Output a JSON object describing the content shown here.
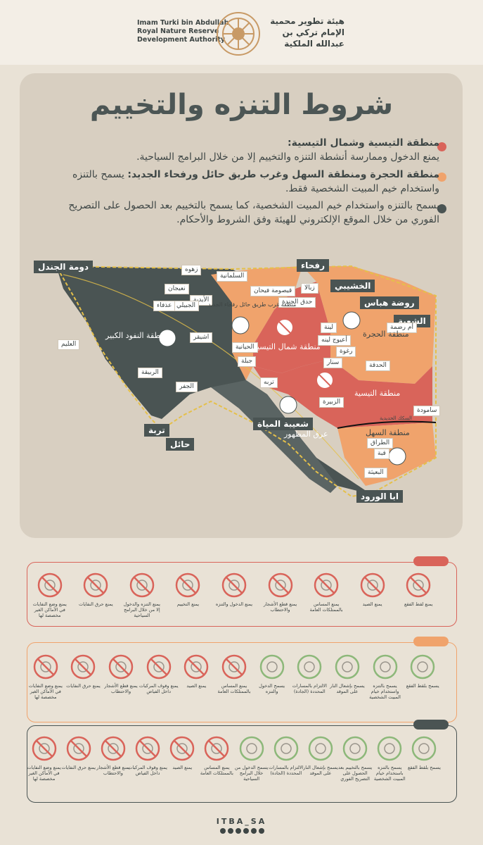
{
  "org": {
    "en": [
      "Imam Turki bin Abdullah",
      "Royal Nature Reserve",
      "Development Authority"
    ],
    "ar": [
      "هيئة تطوير محمية",
      "الإمام تركي بن",
      "عبدالله الملكية"
    ]
  },
  "title": "شروط التنزه والتخييم",
  "rules": [
    {
      "color": "#d9645a",
      "heading": "منطقة التيسية وشمال التيسية:",
      "text": "يمنع الدخول وممارسة أنشطة التنزه والتخييم إلا من خلال البرامج السياحية."
    },
    {
      "color": "#f0a36c",
      "heading": "منطقة الحجرة ومنطقة السهل وغرب طريق حائل ورفحاء الجديد:",
      "text": "يسمح بالتنزه واستخدام خيم المبيت الشخصية فقط."
    },
    {
      "color": "#4a5453",
      "heading": "",
      "text": "يسمح بالتنزه واستخدام خيم المبيت الشخصية، كما يسمح بالتخييم بعد الحصول على التصريح الفوري من خلال الموقع الإلكتروني للهيئة وفق الشروط والأحكام."
    }
  ],
  "map": {
    "big_labels": [
      "دومة الجندل",
      "رفحاء",
      "الخشيبي",
      "روضة هباس",
      "الشعبة",
      "شعيبة المياة",
      "تربة",
      "حائل",
      "ابا الورود"
    ],
    "small_labels": [
      "زهوه",
      "السلمانية",
      "نعيجان",
      "الأيدية",
      "الجبيلي",
      "عذفاء",
      "قيصومة فيحان",
      "زبالا",
      "حدق الجندة",
      "لينة",
      "أم رضمة",
      "أعيوج لينه",
      "رغوة",
      "الحدقة",
      "سنار",
      "اشيقر",
      "الحيانية",
      "جبلة",
      "العليم",
      "الربيقة",
      "الجفر",
      "تربه",
      "الزبيرة",
      "سامودة",
      "الطراق",
      "قبة",
      "البعيثة"
    ],
    "zones": [
      "منطقة النفود الكبير",
      "منطقة غرب طريق حائل رفحاء الجديد",
      "منطقة شمال التيسية",
      "منطقة الحجرة",
      "منطقة التيسية",
      "عرق المظهور",
      "منطقة السهل"
    ],
    "rail": "السكك الحديدية"
  },
  "bands": [
    {
      "color": "#d9645a",
      "items": [
        {
          "icon": "truffle-icon",
          "allowed": false,
          "label": "يمنع لقط الفقع"
        },
        {
          "icon": "no-hunting-icon",
          "allowed": false,
          "label": "يمنع الصيد"
        },
        {
          "icon": "no-touch-icon",
          "allowed": false,
          "label": "يمنع المساس بالممتلكات العامة"
        },
        {
          "icon": "no-tree-cutting-icon",
          "allowed": false,
          "label": "يمنع قطع الأشجار والاحتطاب"
        },
        {
          "icon": "no-walking-icon",
          "allowed": false,
          "label": "يمنع الدخول والتنزه"
        },
        {
          "icon": "no-camping-icon",
          "allowed": false,
          "label": "يمنع التخييم"
        },
        {
          "icon": "no-entry-icon",
          "allowed": false,
          "label": "يمنع التنزه والدخول إلا من خلال البرامج السياحية"
        },
        {
          "icon": "no-fire-icon",
          "allowed": false,
          "label": "يمنع حرق النفايات"
        },
        {
          "icon": "no-littering-icon",
          "allowed": false,
          "label": "يمنع وضع النفايات في الأماكن الغير مخصصة لها"
        }
      ]
    },
    {
      "color": "#f0a36c",
      "items": [
        {
          "icon": "truffle-icon",
          "allowed": true,
          "label": "يسمح بلقط الفقع"
        },
        {
          "icon": "tent-icon",
          "allowed": true,
          "label": "يسمح بالتنزه واستخدام خيام المبيت الشخصية"
        },
        {
          "icon": "campfire-icon",
          "allowed": true,
          "label": "يسمح بإشعال النار على الموقد"
        },
        {
          "icon": "path-icon",
          "allowed": true,
          "label": "الالتزام بالمسارات المحددة (الجادة)"
        },
        {
          "icon": "walking-icon",
          "allowed": true,
          "label": "يسمح الدخول والتنزه"
        },
        {
          "icon": "no-touch-icon",
          "allowed": false,
          "label": "يمنع المساس بالممتلكات العامة"
        },
        {
          "icon": "no-hunting-icon",
          "allowed": false,
          "label": "يمنع الصيد"
        },
        {
          "icon": "no-vehicle-icon",
          "allowed": false,
          "label": "يمنع وقوف المركبات داخل الفياض"
        },
        {
          "icon": "no-tree-cutting-icon",
          "allowed": false,
          "label": "يمنع قطع الأشجار والاحتطاب"
        },
        {
          "icon": "no-fire-icon",
          "allowed": false,
          "label": "يمنع حرق النفايات"
        },
        {
          "icon": "no-littering-icon",
          "allowed": false,
          "label": "يمنع وضع النفايات في الأماكن الغير مخصصة لها"
        }
      ]
    },
    {
      "color": "#4a5453",
      "items": [
        {
          "icon": "truffle-icon",
          "allowed": true,
          "label": "يسمح بلقط الفقع"
        },
        {
          "icon": "tent-icon",
          "allowed": true,
          "label": "يسمح بالتنزه باستخدام خيام المبيت الشخصية"
        },
        {
          "icon": "permit-camp-icon",
          "allowed": true,
          "label": "يسمح بالتخييم بعد الحصول على التصريح الفوري"
        },
        {
          "icon": "campfire-icon",
          "allowed": true,
          "label": "يسمح بإشعال النار على الموقد"
        },
        {
          "icon": "path-icon",
          "allowed": true,
          "label": "الالتزام بالمسارات المحددة (الجادة)"
        },
        {
          "icon": "walking-icon",
          "allowed": true,
          "label": "يسمح الدخول من خلال البرامج السياحية"
        },
        {
          "icon": "no-touch-icon",
          "allowed": false,
          "label": "يمنع المساس بالممتلكات العامة"
        },
        {
          "icon": "no-hunting-icon",
          "allowed": false,
          "label": "يمنع الصيد"
        },
        {
          "icon": "no-vehicle-icon",
          "allowed": false,
          "label": "يمنع وقوف المركبات داخل الفياض"
        },
        {
          "icon": "no-tree-cutting-icon",
          "allowed": false,
          "label": "يمنع قطع الأشجار والاحتطاب"
        },
        {
          "icon": "no-fire-icon",
          "allowed": false,
          "label": "يمنع حرق النفايات"
        },
        {
          "icon": "no-littering-icon",
          "allowed": false,
          "label": "يمنع وضع النفايات في الأماكن الغير مخصصة لها"
        }
      ]
    }
  ],
  "footer": {
    "handle": "ITBA_SA"
  }
}
